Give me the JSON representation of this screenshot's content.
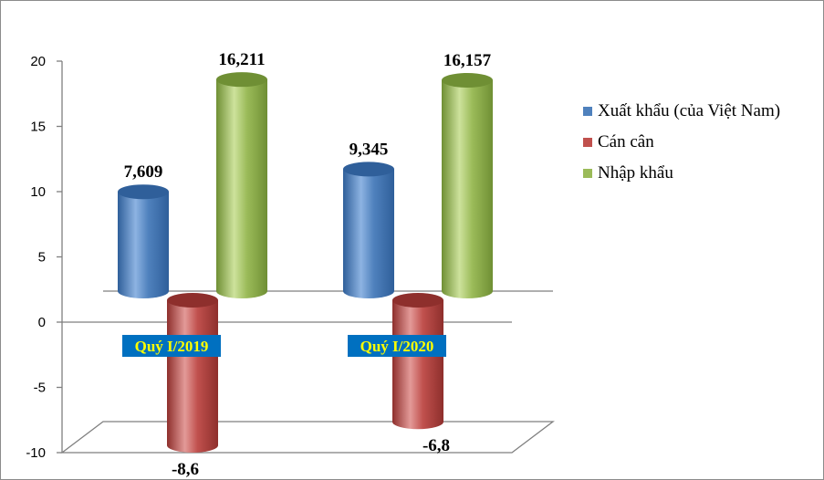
{
  "chart_data": {
    "type": "bar",
    "categories": [
      "Quý I/2019",
      "Quý I/2020"
    ],
    "series": [
      {
        "name": "Xuất khẩu (của Việt Nam)",
        "values": [
          7.609,
          9.345
        ],
        "labels": [
          "7,609",
          "9,345"
        ],
        "color": "#4f81bd",
        "dark": "#2f5f9a",
        "light": "#8db3e2"
      },
      {
        "name": "Cán cân",
        "values": [
          -8.6,
          -6.8
        ],
        "labels": [
          "-8,6",
          "-6,8"
        ],
        "color": "#c0504d",
        "dark": "#8e2f2c",
        "light": "#e39a98"
      },
      {
        "name": "Nhập khẩu",
        "values": [
          16.211,
          16.157
        ],
        "labels": [
          "16,211",
          "16,157"
        ],
        "color": "#9bbb59",
        "dark": "#6f8f34",
        "light": "#cde29c"
      }
    ],
    "ylim": [
      -10,
      20
    ],
    "yticks": [
      "-10",
      "-5",
      "0",
      "5",
      "10",
      "15",
      "20"
    ],
    "category_label_bg": "#0070c0",
    "category_label_color": "#ffff00",
    "legend_position": "right",
    "title": "",
    "xlabel": "",
    "ylabel": ""
  }
}
